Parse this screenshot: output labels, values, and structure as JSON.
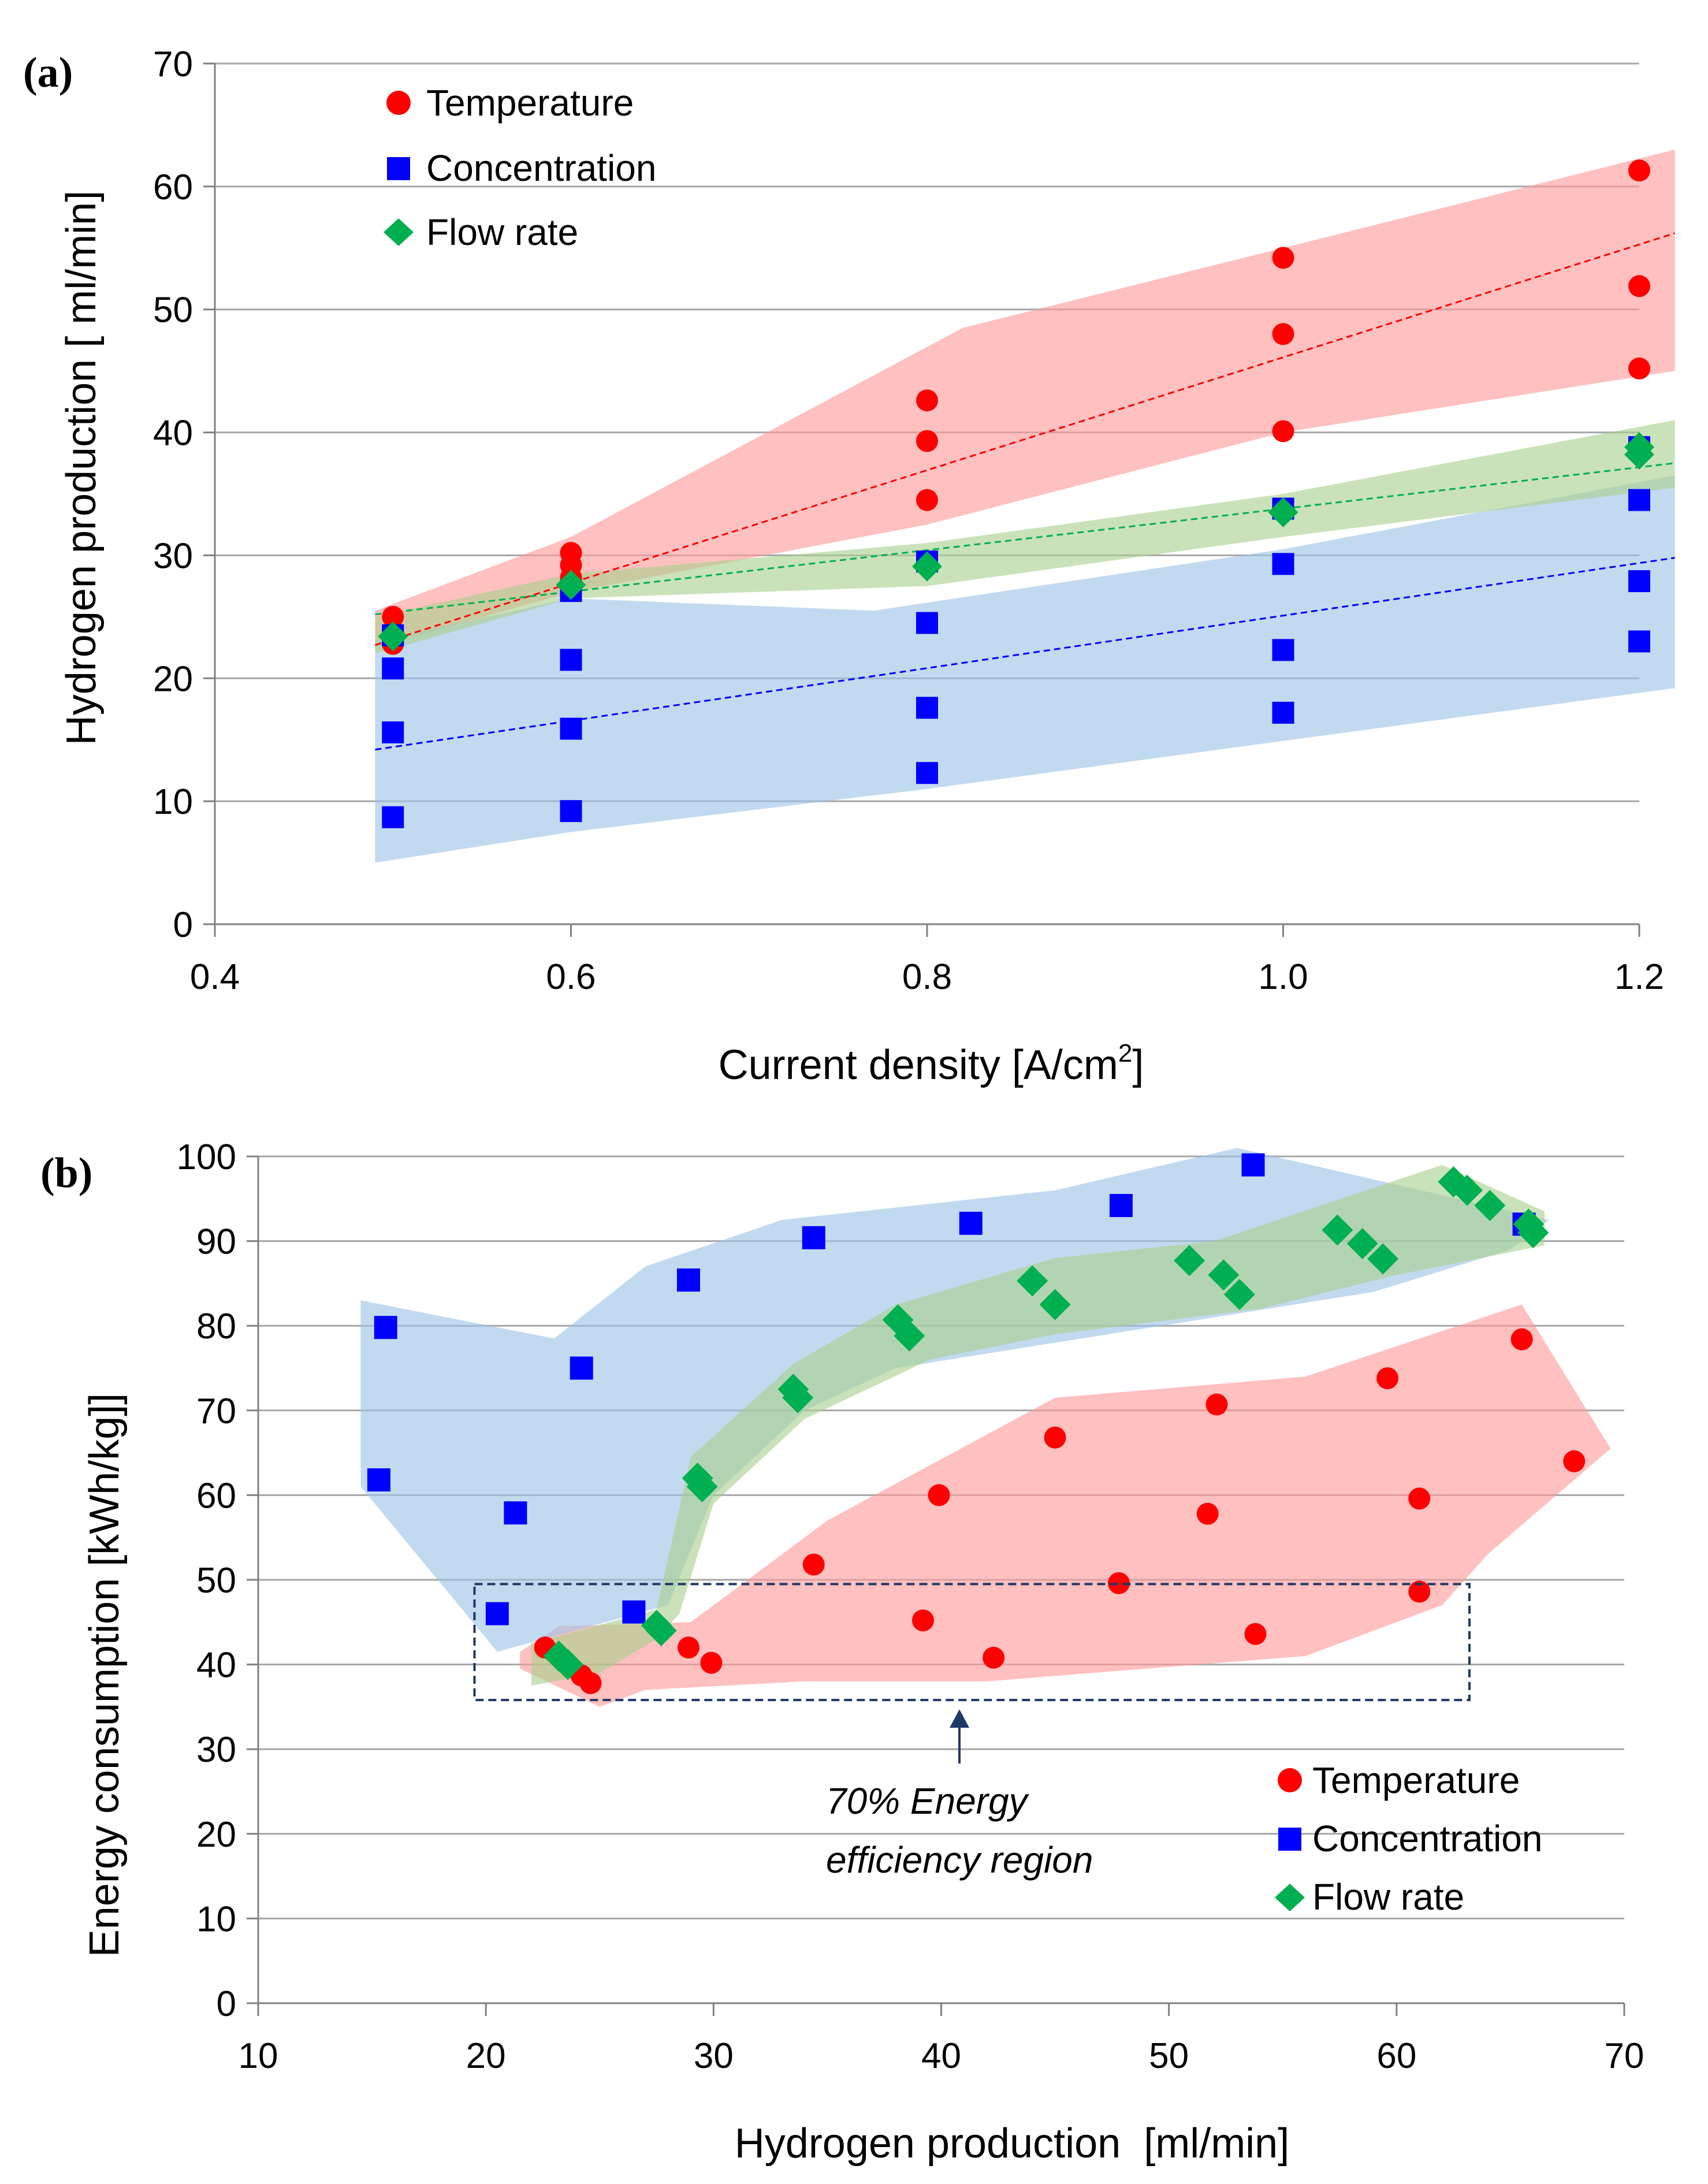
{
  "colors": {
    "temperature": "#ff0000",
    "concentration": "#0000ff",
    "flow_rate": "#00b050",
    "temperature_band": "#ff9999",
    "concentration_band": "#9dc3e6",
    "flow_rate_band": "#a9d18e",
    "gridline": "#a6a6a6",
    "axis": "#808080",
    "annotation_box": "#1f3864",
    "text": "#000000"
  },
  "chart_data": [
    {
      "panel_label": "(a)",
      "type": "scatter",
      "xlabel_main": "Current density [A/cm",
      "xlabel_sup": "2",
      "xlabel_end": "]",
      "ylabel": "Hydrogen production [ ml/min]",
      "xlim": [
        0.4,
        1.2
      ],
      "ylim": [
        0,
        70
      ],
      "x_ticks": [
        0.4,
        0.6,
        0.8,
        1.0,
        1.2
      ],
      "x_tick_labels": [
        "0.4",
        "0.6",
        "0.8",
        "1.0",
        "1.2"
      ],
      "y_ticks": [
        0,
        10,
        20,
        30,
        40,
        50,
        60,
        70
      ],
      "y_tick_labels": [
        "0",
        "10",
        "20",
        "30",
        "40",
        "50",
        "60",
        "70"
      ],
      "legend_position": "top-left",
      "series": [
        {
          "name": "Temperature",
          "marker": "circle",
          "color_key": "temperature",
          "points": [
            [
              0.5,
              22.8
            ],
            [
              0.5,
              23.8
            ],
            [
              0.5,
              25.0
            ],
            [
              0.6,
              28.2
            ],
            [
              0.6,
              29.2
            ],
            [
              0.6,
              30.2
            ],
            [
              0.8,
              34.5
            ],
            [
              0.8,
              39.3
            ],
            [
              0.8,
              42.6
            ],
            [
              1.0,
              40.1
            ],
            [
              1.0,
              48.0
            ],
            [
              1.0,
              54.2
            ],
            [
              1.2,
              45.2
            ],
            [
              1.2,
              51.9
            ],
            [
              1.2,
              61.3
            ]
          ],
          "trend": [
            [
              0.49,
              22.7
            ],
            [
              1.22,
              56.2
            ]
          ],
          "band": [
            [
              0.49,
              25.5
            ],
            [
              0.6,
              31.5
            ],
            [
              0.82,
              48.5
            ],
            [
              1.0,
              55.0
            ],
            [
              1.22,
              63.0
            ],
            [
              1.22,
              45.0
            ],
            [
              1.0,
              40.0
            ],
            [
              0.8,
              32.5
            ],
            [
              0.6,
              27.0
            ],
            [
              0.49,
              22.5
            ]
          ]
        },
        {
          "name": "Concentration",
          "marker": "square",
          "color_key": "concentration",
          "points": [
            [
              0.5,
              8.7
            ],
            [
              0.5,
              15.6
            ],
            [
              0.5,
              20.8
            ],
            [
              0.5,
              23.5
            ],
            [
              0.6,
              9.2
            ],
            [
              0.6,
              15.9
            ],
            [
              0.6,
              21.5
            ],
            [
              0.6,
              27.1
            ],
            [
              0.8,
              12.3
            ],
            [
              0.8,
              17.6
            ],
            [
              0.8,
              24.5
            ],
            [
              0.8,
              29.5
            ],
            [
              1.0,
              17.2
            ],
            [
              1.0,
              22.3
            ],
            [
              1.0,
              29.3
            ],
            [
              1.0,
              33.8
            ],
            [
              1.2,
              23.0
            ],
            [
              1.2,
              27.9
            ],
            [
              1.2,
              34.5
            ],
            [
              1.2,
              38.8
            ]
          ],
          "trend": [
            [
              0.49,
              14.2
            ],
            [
              1.22,
              29.8
            ]
          ],
          "band": [
            [
              0.49,
              23.0
            ],
            [
              0.6,
              26.5
            ],
            [
              0.77,
              25.5
            ],
            [
              1.0,
              30.5
            ],
            [
              1.22,
              36.5
            ],
            [
              1.22,
              19.2
            ],
            [
              0.8,
              11.0
            ],
            [
              0.6,
              7.5
            ],
            [
              0.49,
              5.0
            ]
          ]
        },
        {
          "name": "Flow rate",
          "marker": "diamond",
          "color_key": "flow_rate",
          "points": [
            [
              0.5,
              23.4
            ],
            [
              0.6,
              27.6
            ],
            [
              0.8,
              29.1
            ],
            [
              1.0,
              33.5
            ],
            [
              1.2,
              38.2
            ],
            [
              1.2,
              38.8
            ]
          ],
          "trend": [
            [
              0.49,
              25.2
            ],
            [
              1.22,
              37.5
            ]
          ],
          "band": [
            [
              0.49,
              25.0
            ],
            [
              0.6,
              28.5
            ],
            [
              0.8,
              31.0
            ],
            [
              1.0,
              35.0
            ],
            [
              1.22,
              41.0
            ],
            [
              1.22,
              35.5
            ],
            [
              1.0,
              31.5
            ],
            [
              0.8,
              27.5
            ],
            [
              0.6,
              26.5
            ],
            [
              0.49,
              22.0
            ]
          ]
        }
      ]
    },
    {
      "panel_label": "(b)",
      "type": "scatter",
      "xlabel": "Hydrogen production  [ml/min]",
      "ylabel": "Energy consumption [kWh/kg]]",
      "xlim": [
        10,
        70
      ],
      "ylim": [
        0,
        100
      ],
      "x_ticks": [
        10,
        20,
        30,
        40,
        50,
        60,
        70
      ],
      "x_tick_labels": [
        "10",
        "20",
        "30",
        "40",
        "50",
        "60",
        "70"
      ],
      "y_ticks": [
        0,
        10,
        20,
        30,
        40,
        50,
        60,
        70,
        80,
        90,
        100
      ],
      "y_tick_labels": [
        "0",
        "10",
        "20",
        "30",
        "40",
        "50",
        "60",
        "70",
        "80",
        "90",
        "100"
      ],
      "legend_position": "bottom-right",
      "annotation": {
        "line1": "70% Energy",
        "line2": "efficiency region",
        "region_x": [
          19.5,
          63.2
        ],
        "region_y": [
          35.8,
          49.5
        ],
        "arrow_x": 40.8
      },
      "series": [
        {
          "name": "Temperature",
          "marker": "circle",
          "color_key": "temperature",
          "points": [
            [
              22.6,
              42.0
            ],
            [
              24.2,
              38.7
            ],
            [
              24.6,
              37.8
            ],
            [
              28.9,
              42.0
            ],
            [
              29.9,
              40.2
            ],
            [
              34.4,
              51.8
            ],
            [
              39.2,
              45.2
            ],
            [
              39.9,
              60.0
            ],
            [
              42.3,
              40.8
            ],
            [
              45.0,
              66.8
            ],
            [
              47.8,
              49.6
            ],
            [
              51.7,
              57.8
            ],
            [
              52.1,
              70.7
            ],
            [
              53.8,
              43.6
            ],
            [
              59.6,
              73.8
            ],
            [
              61.0,
              59.6
            ],
            [
              61.0,
              48.6
            ],
            [
              65.5,
              78.4
            ],
            [
              67.8,
              64.0
            ]
          ],
          "band": [
            [
              21.5,
              41.5
            ],
            [
              23.2,
              44.5
            ],
            [
              29.0,
              45.0
            ],
            [
              35.0,
              57.0
            ],
            [
              45.0,
              71.5
            ],
            [
              56.0,
              74.0
            ],
            [
              65.5,
              82.5
            ],
            [
              69.4,
              65.5
            ],
            [
              64.0,
              53.0
            ],
            [
              62.0,
              47.0
            ],
            [
              56.0,
              41.0
            ],
            [
              42.0,
              38.0
            ],
            [
              34.0,
              38.0
            ],
            [
              27.0,
              37.0
            ],
            [
              25.0,
              35.0
            ],
            [
              21.5,
              39.5
            ]
          ]
        },
        {
          "name": "Concentration",
          "marker": "square",
          "color_key": "concentration",
          "points": [
            [
              15.3,
              61.8
            ],
            [
              15.6,
              79.8
            ],
            [
              20.5,
              46.0
            ],
            [
              21.3,
              57.9
            ],
            [
              24.2,
              75.0
            ],
            [
              26.5,
              46.2
            ],
            [
              28.9,
              85.4
            ],
            [
              34.4,
              90.4
            ],
            [
              41.3,
              92.1
            ],
            [
              47.9,
              94.2
            ],
            [
              53.7,
              99.0
            ],
            [
              65.6,
              92.0
            ]
          ],
          "band": [
            [
              14.5,
              83.0
            ],
            [
              23.0,
              78.5
            ],
            [
              27.0,
              87.0
            ],
            [
              33.0,
              92.5
            ],
            [
              45.0,
              96.0
            ],
            [
              53.0,
              101.0
            ],
            [
              66.7,
              92.5
            ],
            [
              65.0,
              89.0
            ],
            [
              59.0,
              84.0
            ],
            [
              38.0,
              75.0
            ],
            [
              34.0,
              70.0
            ],
            [
              30.0,
              60.0
            ],
            [
              28.0,
              47.0
            ],
            [
              20.5,
              41.5
            ],
            [
              14.5,
              61.0
            ]
          ]
        },
        {
          "name": "Flow rate",
          "marker": "diamond",
          "color_key": "flow_rate",
          "points": [
            [
              23.2,
              41.0
            ],
            [
              23.6,
              40.0
            ],
            [
              27.5,
              44.6
            ],
            [
              27.7,
              44.0
            ],
            [
              29.3,
              62.0
            ],
            [
              29.5,
              61.0
            ],
            [
              33.5,
              72.5
            ],
            [
              33.7,
              71.5
            ],
            [
              38.1,
              80.7
            ],
            [
              38.6,
              78.8
            ],
            [
              44.0,
              85.3
            ],
            [
              45.0,
              82.5
            ],
            [
              50.9,
              87.7
            ],
            [
              52.4,
              86.0
            ],
            [
              53.1,
              83.7
            ],
            [
              57.4,
              91.3
            ],
            [
              58.5,
              89.7
            ],
            [
              59.4,
              87.9
            ],
            [
              62.5,
              97.0
            ],
            [
              63.1,
              96.0
            ],
            [
              64.1,
              94.2
            ],
            [
              65.8,
              92.0
            ],
            [
              66.0,
              91.0
            ]
          ],
          "band": [
            [
              22.0,
              37.5
            ],
            [
              22.0,
              42.5
            ],
            [
              27.5,
              46.5
            ],
            [
              29.0,
              64.5
            ],
            [
              33.5,
              75.5
            ],
            [
              38.0,
              82.5
            ],
            [
              45.0,
              88.0
            ],
            [
              52.0,
              90.0
            ],
            [
              62.0,
              99.0
            ],
            [
              66.5,
              93.5
            ],
            [
              66.5,
              89.5
            ],
            [
              60.0,
              86.0
            ],
            [
              54.0,
              82.0
            ],
            [
              45.0,
              79.0
            ],
            [
              39.5,
              76.0
            ],
            [
              34.0,
              69.0
            ],
            [
              30.0,
              59.0
            ],
            [
              28.5,
              46.0
            ],
            [
              27.5,
              43.0
            ],
            [
              25.0,
              39.0
            ]
          ]
        }
      ]
    }
  ]
}
